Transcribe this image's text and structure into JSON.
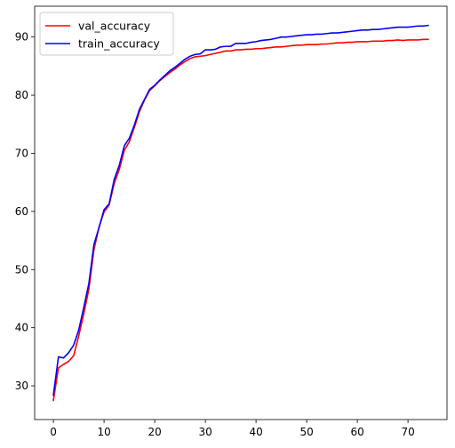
{
  "chart_data": {
    "type": "line",
    "title": "",
    "xlabel": "",
    "ylabel": "",
    "xlim": [
      -3.7,
      77.7
    ],
    "ylim": [
      24.2,
      95.3
    ],
    "x_ticks": [
      0,
      10,
      20,
      30,
      40,
      50,
      60,
      70
    ],
    "y_ticks": [
      30,
      40,
      50,
      60,
      70,
      80,
      90
    ],
    "grid": false,
    "legend_position": "upper-left",
    "series": [
      {
        "name": "val_accuracy",
        "color": "#ff0000",
        "x": [
          0,
          1,
          2,
          3,
          4,
          5,
          6,
          7,
          8,
          9,
          10,
          11,
          12,
          13,
          14,
          15,
          16,
          17,
          18,
          19,
          20,
          21,
          22,
          23,
          24,
          25,
          26,
          27,
          28,
          29,
          30,
          31,
          32,
          33,
          34,
          35,
          36,
          37,
          38,
          39,
          40,
          41,
          42,
          43,
          44,
          45,
          46,
          47,
          48,
          49,
          50,
          51,
          52,
          53,
          54,
          55,
          56,
          57,
          58,
          59,
          60,
          61,
          62,
          63,
          64,
          65,
          66,
          67,
          68,
          69,
          70,
          71,
          72,
          73,
          74
        ],
        "values": [
          27.5,
          33.1,
          33.7,
          34.2,
          35.2,
          38.6,
          42.4,
          46.6,
          53.4,
          57.3,
          59.9,
          61.1,
          64.8,
          67.2,
          70.5,
          72.0,
          74.5,
          77.2,
          79.2,
          80.8,
          81.6,
          82.5,
          83.2,
          83.9,
          84.5,
          85.2,
          85.8,
          86.3,
          86.6,
          86.7,
          86.8,
          87.0,
          87.2,
          87.4,
          87.6,
          87.6,
          87.8,
          87.8,
          87.9,
          87.9,
          88.0,
          88.0,
          88.1,
          88.2,
          88.3,
          88.3,
          88.4,
          88.5,
          88.6,
          88.6,
          88.7,
          88.7,
          88.7,
          88.8,
          88.8,
          88.9,
          89.0,
          89.0,
          89.1,
          89.1,
          89.2,
          89.2,
          89.2,
          89.3,
          89.3,
          89.3,
          89.4,
          89.4,
          89.5,
          89.4,
          89.5,
          89.5,
          89.5,
          89.6,
          89.6
        ]
      },
      {
        "name": "train_accuracy",
        "color": "#0000ff",
        "x": [
          0,
          1,
          2,
          3,
          4,
          5,
          6,
          7,
          8,
          9,
          10,
          11,
          12,
          13,
          14,
          15,
          16,
          17,
          18,
          19,
          20,
          21,
          22,
          23,
          24,
          25,
          26,
          27,
          28,
          29,
          30,
          31,
          32,
          33,
          34,
          35,
          36,
          37,
          38,
          39,
          40,
          41,
          42,
          43,
          44,
          45,
          46,
          47,
          48,
          49,
          50,
          51,
          52,
          53,
          54,
          55,
          56,
          57,
          58,
          59,
          60,
          61,
          62,
          63,
          64,
          65,
          66,
          67,
          68,
          69,
          70,
          71,
          72,
          73,
          74
        ],
        "values": [
          28.4,
          35.0,
          34.8,
          35.7,
          37.0,
          39.6,
          43.5,
          47.6,
          54.3,
          57.2,
          60.3,
          61.3,
          65.5,
          67.9,
          71.3,
          72.6,
          74.9,
          77.6,
          79.3,
          81.0,
          81.7,
          82.6,
          83.4,
          84.2,
          84.8,
          85.5,
          86.2,
          86.7,
          87.0,
          87.1,
          87.8,
          87.8,
          87.9,
          88.3,
          88.4,
          88.4,
          88.9,
          88.9,
          88.9,
          89.1,
          89.2,
          89.4,
          89.5,
          89.6,
          89.8,
          90.0,
          90.0,
          90.1,
          90.2,
          90.3,
          90.4,
          90.4,
          90.5,
          90.5,
          90.6,
          90.7,
          90.7,
          90.8,
          90.9,
          91.0,
          91.1,
          91.2,
          91.2,
          91.3,
          91.3,
          91.4,
          91.5,
          91.6,
          91.7,
          91.7,
          91.7,
          91.8,
          91.9,
          91.9,
          92.0
        ]
      }
    ]
  }
}
